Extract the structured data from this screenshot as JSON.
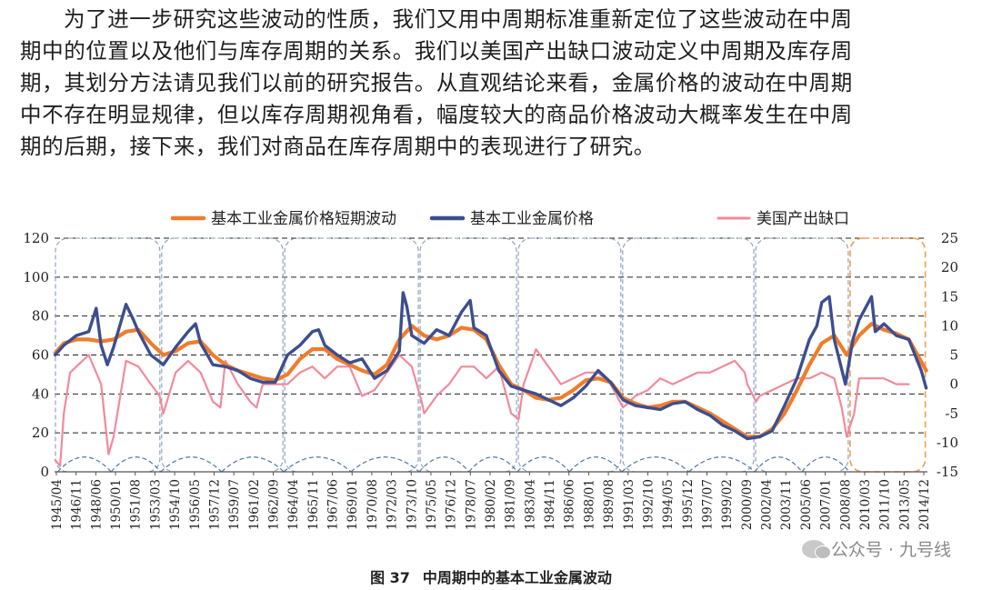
{
  "paragraph": {
    "lines": [
      "为了进一步研究这些波动的性质，我们又用中周期标准重新定位了这些波动在中周",
      "期中的位置以及他们与库存周期的关系。我们以美国产出缺口波动定义中周期及库存周",
      "期，其划分方法请见我们以前的研究报告。从直观结论来看，金属价格的波动在中周期",
      "中不存在明显规律，但以库存周期视角看，幅度较大的商品价格波动大概率发生在中周",
      "期的后期，接下来，我们对商品在库存周期中的表现进行了研究。"
    ]
  },
  "caption": {
    "number": "图 37",
    "text": "中周期中的基本工业金属波动"
  },
  "watermark": {
    "text": "公众号 · 九号线",
    "icon": "wechat-icon"
  },
  "colors": {
    "short_cycle": "#f07c2c",
    "metal_price": "#3c4e8f",
    "output_gap": "#f28a9c",
    "cycle_box": "#8a9bb8",
    "highlight_box": "#f0a050"
  },
  "chart_data": {
    "type": "line",
    "title": "",
    "legend_position": "top",
    "y_left": {
      "min": 0,
      "max": 120,
      "ticks": [
        0,
        20,
        40,
        60,
        80,
        100,
        120
      ]
    },
    "y_right": {
      "min": -15,
      "max": 25,
      "ticks": [
        -15,
        -10,
        -5,
        0,
        5,
        10,
        15,
        20,
        25
      ]
    },
    "x_range": [
      1945.25,
      2015.5
    ],
    "grid": "horizontal dashed",
    "x_tick_labels": [
      "1945/04",
      "1946/11",
      "1948/06",
      "1950/01",
      "1951/08",
      "1953/03",
      "1954/10",
      "1956/05",
      "1957/12",
      "1959/07",
      "1961/02",
      "1962/09",
      "1964/04",
      "1965/11",
      "1967/06",
      "1969/01",
      "1970/08",
      "1972/03",
      "1973/10",
      "1975/05",
      "1976/12",
      "1978/07",
      "1980/02",
      "1981/09",
      "1983/04",
      "1984/11",
      "1986/06",
      "1988/01",
      "1989/08",
      "1991/03",
      "1992/10",
      "1994/05",
      "1995/12",
      "1997/07",
      "1999/02",
      "2000/09",
      "2002/04",
      "2003/11",
      "2005/06",
      "2007/01",
      "2008/08",
      "2010/03",
      "2011/10",
      "2013/05",
      "2014/12"
    ],
    "mid_cycles": [
      {
        "start": 1945.25,
        "end": 1953.8
      },
      {
        "start": 1953.8,
        "end": 1963.7
      },
      {
        "start": 1963.7,
        "end": 1974.6
      },
      {
        "start": 1974.6,
        "end": 1982.5
      },
      {
        "start": 1982.5,
        "end": 1990.9
      },
      {
        "start": 1990.9,
        "end": 2001.6
      },
      {
        "start": 2001.6,
        "end": 2009.2
      },
      {
        "start": 2009.2,
        "end": 2015.4,
        "highlight": true
      }
    ],
    "inventory_cycle_boundaries": [
      1945.5,
      1949.8,
      1953.8,
      1958.7,
      1963.7,
      1969.1,
      1974.6,
      1978.6,
      1982.5,
      1986.7,
      1990.9,
      1996.3,
      2001.6,
      2005.4,
      2009.2
    ],
    "series": [
      {
        "name": "基本工业金属价格短期波动",
        "axis": "left",
        "x": [
          1945.3,
          1946,
          1947,
          1948,
          1949,
          1950,
          1951,
          1952,
          1953,
          1954,
          1955,
          1956,
          1957,
          1958,
          1959,
          1960,
          1961,
          1962,
          1963,
          1964,
          1965,
          1966,
          1967,
          1968,
          1969,
          1970,
          1971,
          1972,
          1973,
          1974,
          1975,
          1976,
          1977,
          1978,
          1979,
          1980,
          1981,
          1982,
          1983,
          1984,
          1985,
          1986,
          1987,
          1988,
          1989,
          1990,
          1991,
          1992,
          1993,
          1994,
          1995,
          1996,
          1997,
          1998,
          1999,
          2000,
          2001,
          2002,
          2003,
          2004,
          2005,
          2006,
          2007,
          2008,
          2009,
          2010,
          2011,
          2012,
          2013,
          2014,
          2015.4
        ],
        "values": [
          61,
          66,
          68,
          68,
          67,
          68,
          72,
          73,
          66,
          60,
          62,
          66,
          67,
          60,
          55,
          52,
          50,
          48,
          47,
          50,
          58,
          63,
          63,
          58,
          55,
          52,
          50,
          55,
          68,
          75,
          70,
          68,
          70,
          74,
          73,
          68,
          55,
          45,
          42,
          38,
          37,
          38,
          42,
          47,
          48,
          46,
          38,
          35,
          33,
          34,
          36,
          36,
          33,
          30,
          26,
          22,
          18,
          18,
          22,
          30,
          42,
          55,
          66,
          70,
          60,
          70,
          76,
          73,
          71,
          68,
          52
        ]
      },
      {
        "name": "基本工业金属价格",
        "axis": "left",
        "x": [
          1945.3,
          1946,
          1947,
          1948,
          1948.6,
          1949,
          1949.5,
          1950,
          1951,
          1951.6,
          1952,
          1953,
          1954,
          1955,
          1956,
          1956.6,
          1957,
          1958,
          1959,
          1960,
          1961,
          1962,
          1963,
          1964,
          1965,
          1966,
          1966.5,
          1967,
          1968,
          1969,
          1970,
          1971,
          1972,
          1973,
          1973.3,
          1973.6,
          1974,
          1974.5,
          1975,
          1976,
          1977,
          1978,
          1978.7,
          1979,
          1980,
          1981,
          1982,
          1983,
          1984,
          1985,
          1986,
          1987,
          1988,
          1989,
          1990,
          1991,
          1992,
          1993,
          1994,
          1995,
          1996,
          1997,
          1998,
          1999,
          2000,
          2001,
          2002,
          2003,
          2004,
          2005,
          2006,
          2006.6,
          2007,
          2007.6,
          2008,
          2008.9,
          2009.5,
          2010,
          2011,
          2011.3,
          2012,
          2013,
          2014,
          2015,
          2015.4
        ],
        "values": [
          60,
          65,
          70,
          72,
          84,
          65,
          55,
          64,
          86,
          78,
          72,
          60,
          55,
          64,
          72,
          76,
          66,
          55,
          54,
          52,
          48,
          46,
          46,
          60,
          65,
          72,
          73,
          65,
          60,
          56,
          58,
          48,
          52,
          62,
          92,
          85,
          70,
          68,
          66,
          73,
          70,
          82,
          88,
          74,
          70,
          52,
          44,
          42,
          40,
          37,
          34,
          38,
          44,
          52,
          46,
          37,
          34,
          33,
          32,
          35,
          36,
          32,
          29,
          24,
          21,
          17,
          18,
          21,
          34,
          48,
          68,
          75,
          87,
          90,
          68,
          45,
          68,
          78,
          90,
          72,
          76,
          70,
          68,
          52,
          43
        ]
      },
      {
        "name": "美国产出缺口",
        "axis": "right",
        "x": [
          1945.3,
          1945.7,
          1946,
          1946.5,
          1947,
          1948,
          1949,
          1949.6,
          1950,
          1951,
          1952,
          1953,
          1953.7,
          1954,
          1955,
          1956,
          1957,
          1958,
          1958.6,
          1959,
          1960,
          1961,
          1961.5,
          1962,
          1963,
          1964,
          1965,
          1966,
          1967,
          1968,
          1969,
          1970,
          1971,
          1972,
          1973,
          1974,
          1974.8,
          1975,
          1976,
          1977,
          1978,
          1979,
          1980,
          1981,
          1982,
          1982.6,
          1983,
          1984,
          1985,
          1986,
          1987,
          1988,
          1989,
          1990,
          1991,
          1992,
          1993,
          1994,
          1995,
          1996,
          1997,
          1998,
          1999,
          2000,
          2000.8,
          2001,
          2001.7,
          2002,
          2003,
          2004,
          2005,
          2006,
          2007,
          2008,
          2008.6,
          2009,
          2009.6,
          2010,
          2011,
          2012,
          2013,
          2014
        ],
        "values": [
          -13,
          -14,
          -5,
          2,
          3,
          5,
          0,
          -12,
          -9,
          4,
          3,
          0,
          -2,
          -5,
          2,
          4,
          2,
          -3,
          -4,
          4,
          0,
          -3,
          -4,
          0,
          0,
          0,
          2,
          3,
          1,
          3,
          3,
          -2,
          -1,
          2,
          5,
          3,
          -3,
          -5,
          -2,
          0,
          3,
          3,
          1,
          3,
          -5,
          -6,
          0,
          6,
          3,
          0,
          1,
          2,
          2,
          0,
          -4,
          -2,
          -1,
          1,
          0,
          1,
          2,
          2,
          3,
          4,
          2,
          0,
          -3,
          -2,
          -1,
          0,
          1,
          1,
          2,
          1,
          -4,
          -9,
          -5,
          1,
          1,
          1,
          0,
          0
        ]
      }
    ]
  }
}
